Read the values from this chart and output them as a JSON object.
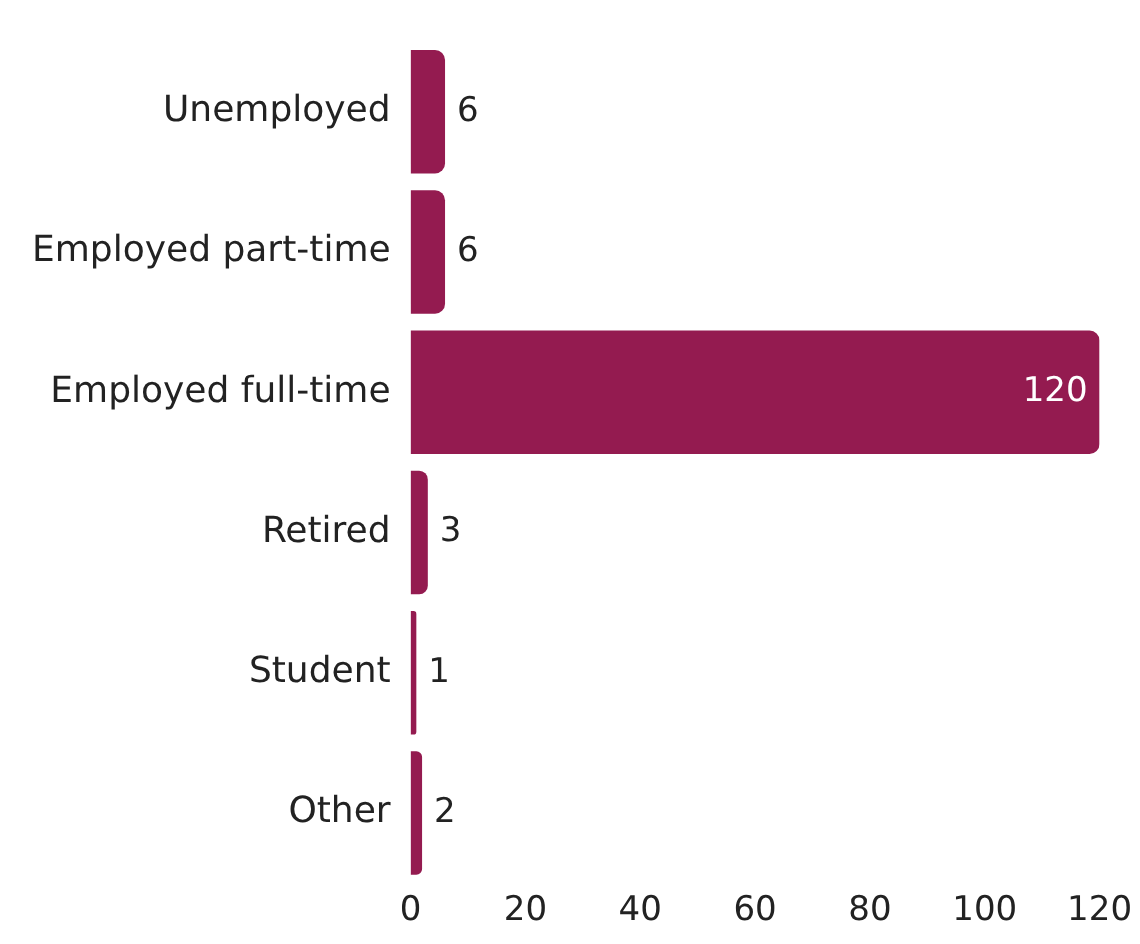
{
  "chart_data": {
    "type": "bar",
    "orientation": "horizontal",
    "categories": [
      "Unemployed",
      "Employed part-time",
      "Employed full-time",
      "Retired",
      "Student",
      "Other"
    ],
    "values": [
      6,
      6,
      120,
      3,
      1,
      2
    ],
    "color": "#941b50",
    "xlim": [
      0,
      120
    ],
    "xticks": [
      0,
      20,
      40,
      60,
      80,
      100,
      120
    ],
    "grid": false,
    "legend": false,
    "data_labels": true
  }
}
